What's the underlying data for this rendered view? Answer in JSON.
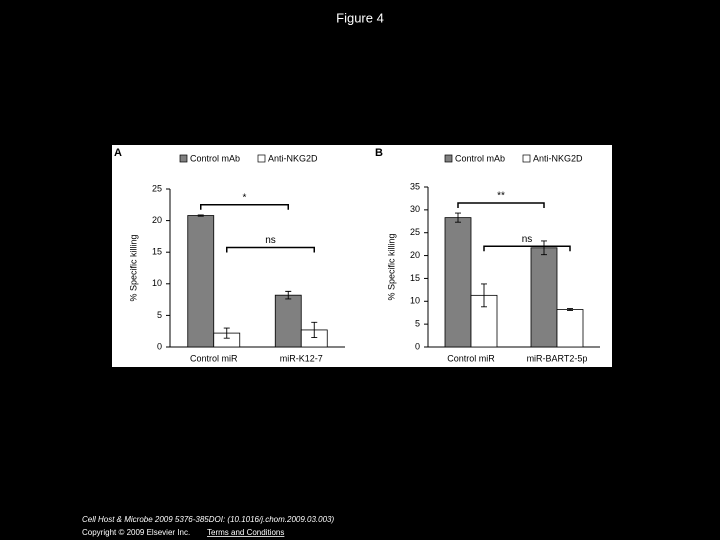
{
  "page_title": "Figure 4",
  "footer": {
    "citation": "Cell Host & Microbe 2009 5376-385DOI: (10.1016/j.chom.2009.03.003)",
    "copyright": "Copyright © 2009 Elsevier Inc.",
    "link": "Terms and Conditions"
  },
  "chart_data": [
    {
      "type": "bar",
      "panel": "A",
      "ylabel": "% Specific killing",
      "categories": [
        "Control miR",
        "miR-K12-7"
      ],
      "series": [
        {
          "name": "Control mAb",
          "color": "#808080",
          "values": [
            20.8,
            8.2
          ],
          "errors": [
            0.1,
            0.6
          ]
        },
        {
          "name": "Anti-NKG2D",
          "color": "#ffffff",
          "values": [
            2.2,
            2.7
          ],
          "errors": [
            0.8,
            1.2
          ]
        }
      ],
      "annotations": [
        "*",
        "ns"
      ],
      "ylim": [
        0,
        25
      ],
      "yticks": [
        0,
        5,
        10,
        15,
        20,
        25
      ]
    },
    {
      "type": "bar",
      "panel": "B",
      "ylabel": "% Specific killing",
      "categories": [
        "Control miR",
        "miR-BART2-5p"
      ],
      "series": [
        {
          "name": "Control mAb",
          "color": "#808080",
          "values": [
            28.3,
            21.7
          ],
          "errors": [
            1.0,
            1.5
          ]
        },
        {
          "name": "Anti-NKG2D",
          "color": "#ffffff",
          "values": [
            11.3,
            8.2
          ],
          "errors": [
            2.5,
            0.2
          ]
        }
      ],
      "annotations": [
        "**",
        "ns"
      ],
      "ylim": [
        0,
        35
      ],
      "yticks": [
        0,
        5,
        10,
        15,
        20,
        25,
        30,
        35
      ]
    }
  ]
}
